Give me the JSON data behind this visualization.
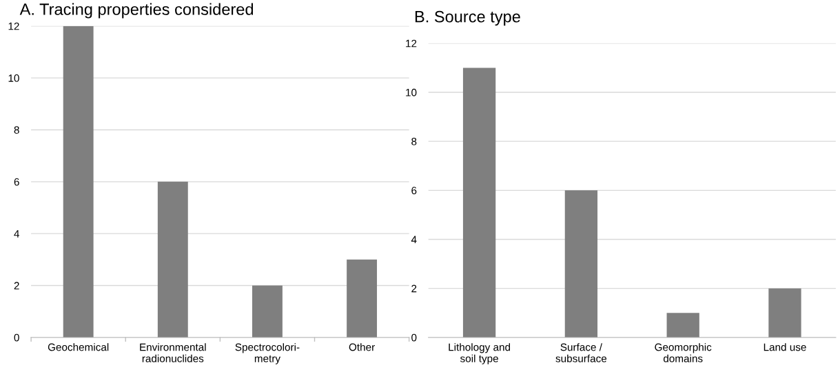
{
  "chart_data": [
    {
      "type": "bar",
      "title": "A. Tracing properties considered",
      "categories": [
        "Geochemical",
        "Environmental\nradionuclides",
        "Spectrocolori-\nmetry",
        "Other"
      ],
      "values": [
        12,
        6,
        2,
        3
      ],
      "color": "#7f7f7f",
      "ylim": [
        0,
        12
      ],
      "yticks": [
        0,
        2,
        4,
        6,
        8,
        10,
        12
      ],
      "grid": "y"
    },
    {
      "type": "bar",
      "title": "B. Source type",
      "categories": [
        "Lithology and\nsoil type",
        "Surface /\nsubsurface",
        "Geomorphic\ndomains",
        "Land use"
      ],
      "values": [
        11,
        6,
        1,
        2
      ],
      "color": "#7f7f7f",
      "ylim": [
        0,
        12
      ],
      "yticks": [
        0,
        2,
        4,
        6,
        8,
        10,
        12
      ],
      "grid": "y"
    }
  ]
}
